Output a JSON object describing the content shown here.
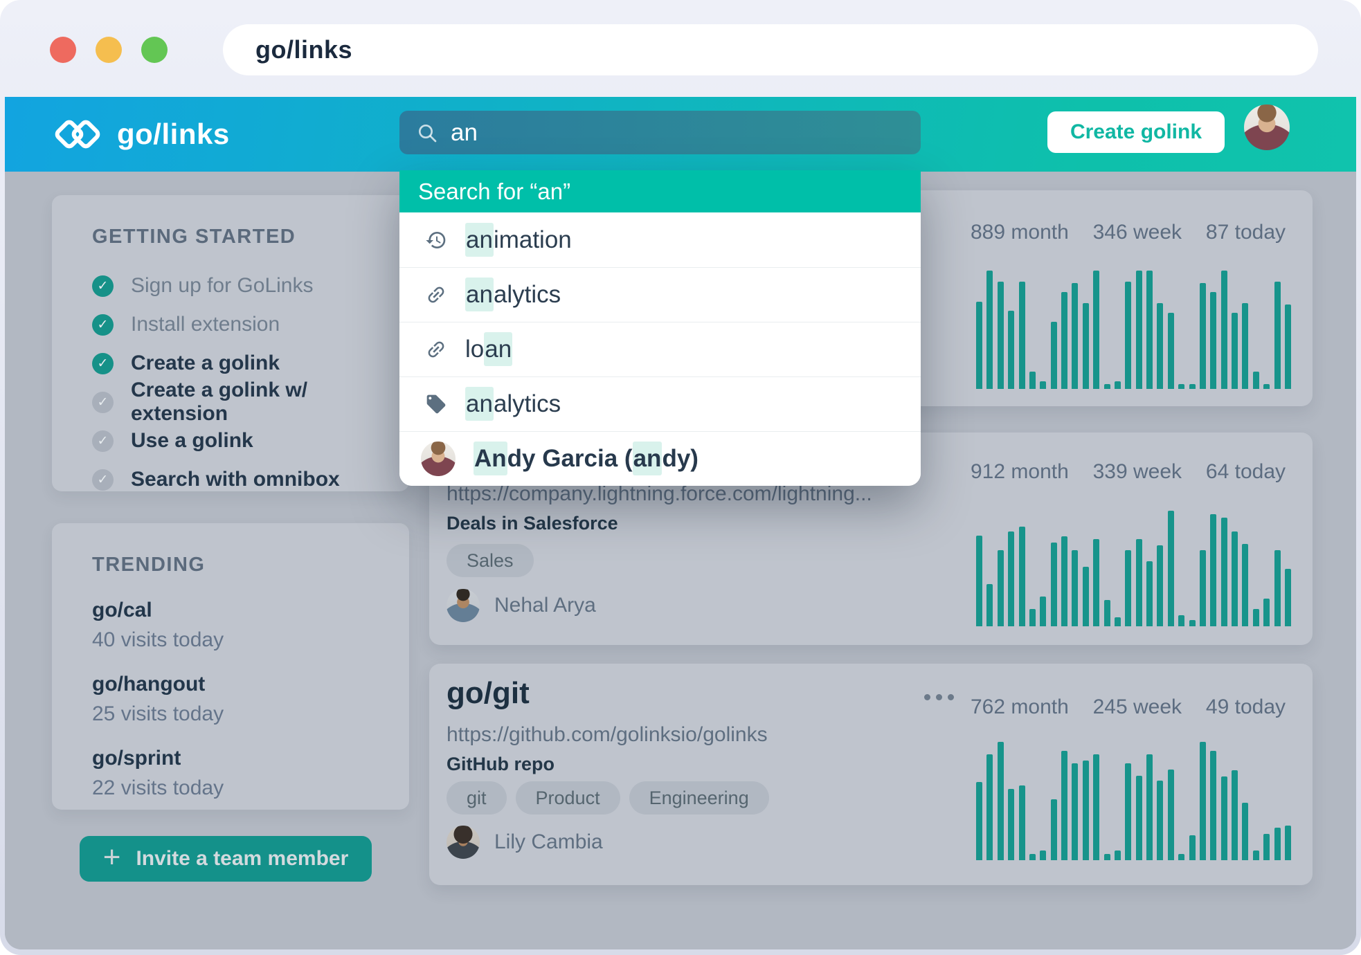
{
  "window": {
    "url_text": "go/links"
  },
  "topbar": {
    "brand": "go/links",
    "search_value": "an",
    "create_button_label": "Create golink"
  },
  "dropdown": {
    "header_label": "Search for “an”",
    "items": [
      {
        "icon": "history-icon",
        "segments": [
          {
            "t": "an",
            "h": true
          },
          {
            "t": "imation",
            "h": false
          }
        ]
      },
      {
        "icon": "link-icon",
        "segments": [
          {
            "t": "an",
            "h": true
          },
          {
            "t": "alytics",
            "h": false
          }
        ]
      },
      {
        "icon": "link-icon",
        "segments": [
          {
            "t": "lo",
            "h": false
          },
          {
            "t": "an",
            "h": true
          }
        ]
      },
      {
        "icon": "tag-icon",
        "segments": [
          {
            "t": "an",
            "h": true
          },
          {
            "t": "alytics",
            "h": false
          }
        ]
      },
      {
        "icon": "avatar",
        "avatar": "andy",
        "bold": true,
        "segments": [
          {
            "t": "An",
            "h": true
          },
          {
            "t": "dy Garcia (",
            "h": false
          },
          {
            "t": "an",
            "h": true
          },
          {
            "t": "dy)",
            "h": false
          }
        ]
      }
    ]
  },
  "sidebar": {
    "getting_started": {
      "title": "GETTING STARTED",
      "items": [
        {
          "label": "Sign up for GoLinks",
          "done": true,
          "muted": true
        },
        {
          "label": "Install extension",
          "done": true,
          "muted": true
        },
        {
          "label": "Create a golink",
          "done": true,
          "muted": false
        },
        {
          "label": "Create a golink w/ extension",
          "done": false,
          "muted": false
        },
        {
          "label": "Use a golink",
          "done": false,
          "muted": false
        },
        {
          "label": "Search with omnibox",
          "done": false,
          "muted": false
        }
      ]
    },
    "trending": {
      "title": "TRENDING",
      "items": [
        {
          "name": "go/cal",
          "visits": "40 visits today"
        },
        {
          "name": "go/hangout",
          "visits": "25 visits today"
        },
        {
          "name": "go/sprint",
          "visits": "22 visits today"
        }
      ]
    },
    "invite_button_label": "Invite a team member"
  },
  "cards": [
    {
      "stats": [
        "889 month",
        "346 week",
        "87 today"
      ]
    },
    {
      "url": "https://company.lightning.force.com/lightning...",
      "description": "Deals in Salesforce",
      "tags": [
        "Sales"
      ],
      "owner": "Nehal Arya",
      "stats": [
        "912 month",
        "339 week",
        "64 today"
      ]
    },
    {
      "title": "go/git",
      "url": "https://github.com/golinksio/golinks",
      "description": "GitHub repo",
      "tags": [
        "git",
        "Product",
        "Engineering"
      ],
      "owner": "Lily Cambia",
      "stats": [
        "762 month",
        "245 week",
        "49 today"
      ]
    }
  ],
  "chart_data": [
    {
      "type": "bar",
      "card": "top-card",
      "legend": "daily visits, last 30 days (relative height %)",
      "period_stats": {
        "month": 889,
        "week": 346,
        "today": 87
      },
      "values": [
        70,
        95,
        86,
        63,
        86,
        14,
        6,
        54,
        78,
        85,
        69,
        95,
        4,
        6,
        86,
        95,
        95,
        69,
        61,
        4,
        4,
        85,
        78,
        95,
        61,
        69,
        14,
        4,
        86,
        68
      ],
      "color": "#17948b"
    },
    {
      "type": "bar",
      "card": "salesforce-card",
      "legend": "daily visits, last 30 days (relative height %)",
      "period_stats": {
        "month": 912,
        "week": 339,
        "today": 64
      },
      "values": [
        73,
        34,
        61,
        76,
        80,
        14,
        24,
        67,
        72,
        61,
        48,
        70,
        21,
        7,
        61,
        70,
        52,
        65,
        93,
        9,
        5,
        61,
        90,
        87,
        76,
        66,
        14,
        22,
        61,
        46
      ],
      "color": "#17948b"
    },
    {
      "type": "bar",
      "card": "go-git-card",
      "legend": "daily visits, last 30 days (relative height %)",
      "period_stats": {
        "month": 762,
        "week": 245,
        "today": 49
      },
      "values": [
        63,
        85,
        95,
        57,
        60,
        5,
        8,
        49,
        88,
        78,
        80,
        85,
        5,
        8,
        78,
        68,
        85,
        64,
        73,
        5,
        20,
        95,
        88,
        67,
        72,
        46,
        8,
        21,
        26,
        28
      ],
      "color": "#17948b"
    }
  ],
  "icons": {
    "search": "magnifier",
    "history": "clock-counterclockwise",
    "link": "chain-link",
    "tag": "label-tag",
    "plus": "+",
    "more_options": "three-dots",
    "check": "✓",
    "logo": "double-diamond-link"
  },
  "colors": {
    "header_gradient_start": "#12a4e0",
    "header_gradient_end": "#0ec0ab",
    "dropdown_accent": "#00bfa9",
    "highlight": "#d9f2ec",
    "bar_color": "#17948b",
    "button_teal": "#14918a",
    "traffic_red": "#ee6a5f",
    "traffic_yellow": "#f5be4f",
    "traffic_green": "#63c654"
  }
}
